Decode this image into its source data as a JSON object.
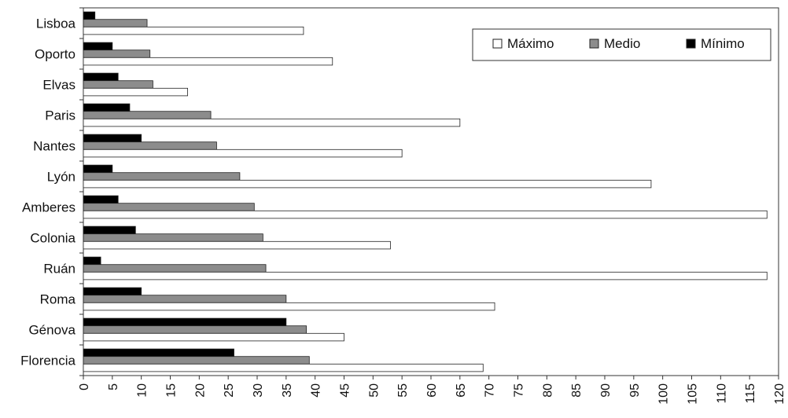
{
  "chart_data": {
    "type": "bar",
    "orientation": "horizontal",
    "title": "",
    "xlabel": "",
    "ylabel": "",
    "xlim": [
      0,
      120
    ],
    "x_ticks": [
      "0",
      "5",
      "10",
      "15",
      "20",
      "25",
      "30",
      "35",
      "40",
      "45",
      "50",
      "55",
      "60",
      "65",
      "70",
      "75",
      "80",
      "85",
      "90",
      "95",
      "100",
      "105",
      "110",
      "115",
      "120"
    ],
    "categories": [
      "Lisboa",
      "Oporto",
      "Elvas",
      "Paris",
      "Nantes",
      "Lyón",
      "Amberes",
      "Colonia",
      "Ruán",
      "Roma",
      "Génova",
      "Florencia"
    ],
    "series": [
      {
        "name": "Mínimo",
        "color": "#000000",
        "values": [
          2,
          5,
          6,
          8,
          10,
          5,
          6,
          9,
          3,
          10,
          35,
          26
        ]
      },
      {
        "name": "Medio",
        "color": "#8c8c8c",
        "values": [
          11,
          11.5,
          12,
          22,
          23,
          27,
          29.5,
          31,
          31.5,
          35,
          38.5,
          39
        ]
      },
      {
        "name": "Máximo",
        "color": "#ffffff",
        "values": [
          38,
          43,
          18,
          65,
          55,
          98,
          118,
          53,
          118,
          71,
          45,
          69
        ]
      }
    ],
    "grid": false,
    "legend": {
      "position": "top-right",
      "order": [
        "Máximo",
        "Medio",
        "Mínimo"
      ]
    }
  }
}
